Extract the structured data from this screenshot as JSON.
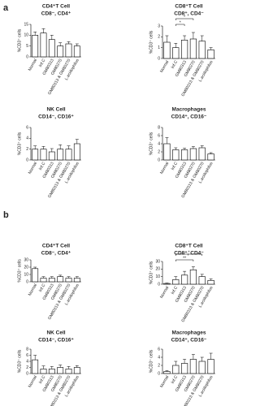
{
  "panel_labels": [
    "a",
    "b"
  ],
  "chart_data": [
    {
      "type": "bar",
      "title": "CD4⁺T Cell",
      "subtitle": "CD8⁻, CD4⁺",
      "y_label": "%CD3⁺ cells",
      "categories": [
        "Normal",
        "Inf.C",
        "GM80313",
        "GM80270",
        "GM80313 & GM80270",
        "L.acidophilus"
      ],
      "values": [
        10,
        11,
        8,
        5,
        6,
        5
      ],
      "errors": [
        1.5,
        2,
        2,
        1.5,
        1,
        1
      ],
      "color": "#ffffff",
      "ylim": [
        0,
        15
      ],
      "yticks": [
        0,
        5,
        10,
        15
      ]
    },
    {
      "type": "bar",
      "title": "CD8⁺T Cell",
      "subtitle": "CD8⁺, CD4⁻",
      "y_label": "%CD3⁺ cells",
      "categories": [
        "Normal",
        "Inf.C",
        "GM80313",
        "GM80270",
        "GM80313 & GM80270",
        "L.acidophilus"
      ],
      "values": [
        1.5,
        1.0,
        1.7,
        1.8,
        1.6,
        0.8
      ],
      "errors": [
        0.6,
        0.4,
        0.4,
        0.6,
        0.5,
        0.2
      ],
      "color": "#ffffff",
      "ylim": [
        0,
        3
      ],
      "yticks": [
        0,
        1,
        2,
        3
      ],
      "annotations": [
        "*",
        "*"
      ]
    },
    {
      "type": "bar",
      "title": "NK Cell",
      "subtitle": "CD14⁻, CD16⁺",
      "y_label": "%CD3⁺ cells",
      "categories": [
        "Normal",
        "Inf.C",
        "GM80313",
        "GM80270",
        "GM80313 & GM80270",
        "L.acidophilus"
      ],
      "values": [
        2,
        2,
        1.5,
        2,
        2,
        3
      ],
      "errors": [
        0.6,
        0.5,
        0.6,
        0.8,
        0.6,
        0.8
      ],
      "color": "#ffffff",
      "ylim": [
        0,
        6
      ],
      "yticks": [
        0,
        2,
        4,
        6
      ]
    },
    {
      "type": "bar",
      "title": "Macrophages",
      "subtitle": "CD14⁺, CD16⁻",
      "y_label": "%CD3⁺ cells",
      "categories": [
        "Normal",
        "Inf.C",
        "GM80313",
        "GM80270",
        "GM80313 & GM80270",
        "L.acidophilus"
      ],
      "values": [
        4,
        2.5,
        2.5,
        2.8,
        3,
        1.5
      ],
      "errors": [
        1.5,
        0.5,
        0.4,
        0.5,
        0.5,
        0.3
      ],
      "color": "#ffffff",
      "ylim": [
        0,
        8
      ],
      "yticks": [
        0,
        2,
        4,
        6,
        8
      ]
    },
    {
      "type": "bar",
      "title": "CD4⁺T Cell",
      "subtitle": "CD8⁻, CD4⁺",
      "y_label": "%CD3⁺ cells",
      "categories": [
        "Normal",
        "Inf.C",
        "GM80313",
        "GM80270",
        "GM80313 & GM80270",
        "L.acidophilus"
      ],
      "values": [
        18,
        5,
        5,
        7,
        5,
        5
      ],
      "errors": [
        2,
        2,
        2,
        2,
        2,
        2
      ],
      "color": "#ffffff",
      "ylim": [
        0,
        30
      ],
      "yticks": [
        0,
        10,
        20,
        30
      ]
    },
    {
      "type": "bar",
      "title": "CD8⁺T Cell",
      "subtitle": "CD8⁺, CD4⁻",
      "y_label": "%CD3⁺ cells",
      "categories": [
        "Normal",
        "Inf.C",
        "GM80313",
        "GM80270",
        "GM80313 & GM80270",
        "L.acidophilus"
      ],
      "values": [
        1,
        6,
        12,
        19,
        10,
        5
      ],
      "errors": [
        0.5,
        4,
        5,
        4,
        3,
        2
      ],
      "color": "#ffffff",
      "ylim": [
        0,
        30
      ],
      "yticks": [
        0,
        10,
        20,
        30
      ],
      "annotations": [
        "**",
        "*"
      ]
    },
    {
      "type": "bar",
      "title": "NK Cell",
      "subtitle": "CD14⁻, CD16⁺",
      "y_label": "%CD3⁺ cells",
      "categories": [
        "Normal",
        "Inf.C",
        "GM80313",
        "GM80270",
        "GM80313 & GM80270",
        "L.acidophilus"
      ],
      "values": [
        4.5,
        1.5,
        1.5,
        2,
        1.5,
        2
      ],
      "errors": [
        1.5,
        1,
        0.8,
        0.8,
        0.8,
        0.6
      ],
      "color": "#ffffff",
      "ylim": [
        0,
        8
      ],
      "yticks": [
        0,
        2,
        4,
        6,
        8
      ]
    },
    {
      "type": "bar",
      "title": "Macrophages",
      "subtitle": "CD14⁺, CD16⁻",
      "y_label": "%CD3⁺ cells",
      "categories": [
        "Normal",
        "Inf.C",
        "GM80313",
        "GM80270",
        "GM80313 & GM80270",
        "L.acidophilus"
      ],
      "values": [
        0.5,
        2,
        2.5,
        3.5,
        3,
        3.5
      ],
      "errors": [
        0.2,
        1,
        1,
        1.2,
        1,
        1.5
      ],
      "color": "#ffffff",
      "ylim": [
        0,
        6
      ],
      "yticks": [
        0,
        2,
        4,
        6
      ]
    }
  ]
}
